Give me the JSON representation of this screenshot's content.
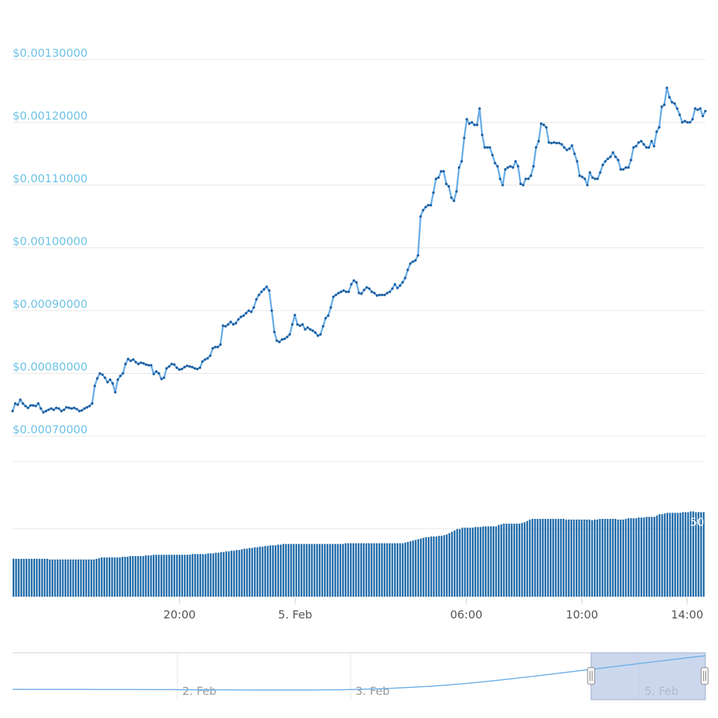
{
  "chart_data": [
    {
      "type": "line",
      "y_tick_labels": [
        "$0.00130000",
        "$0.00120000",
        "$0.00110000",
        "$0.00100000",
        "$0.00090000",
        "$0.00080000",
        "$0.00070000"
      ],
      "ylim": [
        0.0007,
        0.0013
      ],
      "grid": true,
      "line_color": "#6aaee8",
      "marker_color": "#1f5fa0",
      "x_tick_labels": [
        "20:00",
        "5. Feb",
        "06:00",
        "10:00",
        "14:00"
      ],
      "series": [
        {
          "values": [
            0.00074,
            0.000752,
            0.00075,
            0.000758,
            0.000752,
            0.000748,
            0.000745,
            0.000749,
            0.000749,
            0.000748,
            0.000752,
            0.000744,
            0.000738,
            0.00074,
            0.000742,
            0.000744,
            0.000742,
            0.000745,
            0.000744,
            0.00074,
            0.000742,
            0.000746,
            0.000745,
            0.000744,
            0.000745,
            0.000743,
            0.00074,
            0.000741,
            0.000744,
            0.000746,
            0.000748,
            0.000752,
            0.00078,
            0.000792,
            0.0008,
            0.000798,
            0.000793,
            0.000786,
            0.00079,
            0.000784,
            0.00077,
            0.00079,
            0.000796,
            0.0008,
            0.000815,
            0.000823,
            0.00082,
            0.000822,
            0.000818,
            0.000815,
            0.000817,
            0.000816,
            0.000814,
            0.000813,
            0.000813,
            0.000799,
            0.000803,
            0.0008,
            0.000791,
            0.000793,
            0.000808,
            0.000811,
            0.000815,
            0.000814,
            0.000809,
            0.000806,
            0.000807,
            0.00081,
            0.000812,
            0.000811,
            0.00081,
            0.000808,
            0.000807,
            0.000809,
            0.000819,
            0.000822,
            0.000824,
            0.000828,
            0.00084,
            0.000842,
            0.000842,
            0.000846,
            0.000876,
            0.000875,
            0.000878,
            0.000882,
            0.000878,
            0.00088,
            0.000886,
            0.00089,
            0.000892,
            0.000896,
            0.0009,
            0.000898,
            0.000905,
            0.000918,
            0.000925,
            0.00093,
            0.000934,
            0.000938,
            0.000932,
            0.0009,
            0.000866,
            0.000852,
            0.00085,
            0.000854,
            0.000855,
            0.000858,
            0.000862,
            0.000878,
            0.000893,
            0.000878,
            0.000876,
            0.000878,
            0.00087,
            0.000873,
            0.00087,
            0.000868,
            0.000865,
            0.00086,
            0.000862,
            0.000875,
            0.000888,
            0.000892,
            0.000905,
            0.000922,
            0.000925,
            0.000928,
            0.00093,
            0.000932,
            0.00093,
            0.00093,
            0.000942,
            0.000948,
            0.000945,
            0.000928,
            0.000927,
            0.000933,
            0.000937,
            0.000935,
            0.00093,
            0.000928,
            0.000924,
            0.000925,
            0.000925,
            0.000925,
            0.000928,
            0.00093,
            0.000935,
            0.000942,
            0.000936,
            0.00094,
            0.000945,
            0.000952,
            0.000965,
            0.000975,
            0.000978,
            0.00098,
            0.000988,
            0.00105,
            0.00106,
            0.001065,
            0.001068,
            0.001068,
            0.001088,
            0.00111,
            0.001112,
            0.001122,
            0.001122,
            0.001102,
            0.001098,
            0.00108,
            0.001075,
            0.00109,
            0.001128,
            0.001138,
            0.001175,
            0.001205,
            0.001198,
            0.0012,
            0.001196,
            0.001196,
            0.001222,
            0.00118,
            0.00116,
            0.00116,
            0.00116,
            0.001148,
            0.001135,
            0.00113,
            0.00111,
            0.0011,
            0.001125,
            0.001128,
            0.00113,
            0.001128,
            0.001138,
            0.00113,
            0.001102,
            0.0011,
            0.00111,
            0.00111,
            0.001115,
            0.00113,
            0.00116,
            0.00117,
            0.001198,
            0.001196,
            0.001192,
            0.001168,
            0.001167,
            0.001168,
            0.001167,
            0.001167,
            0.001165,
            0.00116,
            0.001156,
            0.001158,
            0.001163,
            0.00115,
            0.001138,
            0.001115,
            0.001113,
            0.00111,
            0.0011,
            0.00112,
            0.001112,
            0.00111,
            0.00111,
            0.00112,
            0.001132,
            0.001138,
            0.001142,
            0.001145,
            0.001152,
            0.001145,
            0.00114,
            0.001125,
            0.001125,
            0.001128,
            0.001128,
            0.00114,
            0.00116,
            0.001162,
            0.001168,
            0.00117,
            0.001165,
            0.00116,
            0.00116,
            0.00117,
            0.001162,
            0.001185,
            0.001192,
            0.001225,
            0.001228,
            0.001255,
            0.00124,
            0.001232,
            0.00123,
            0.001222,
            0.001212,
            0.0012,
            0.001202,
            0.0012,
            0.0012,
            0.001205,
            0.001222,
            0.00122,
            0.001222,
            0.00121,
            0.001218
          ]
        }
      ]
    },
    {
      "type": "bar",
      "bar_color": "#1f6aa8",
      "partial_label": "50",
      "values": [
        0.28,
        0.28,
        0.28,
        0.28,
        0.28,
        0.28,
        0.28,
        0.28,
        0.28,
        0.28,
        0.28,
        0.28,
        0.28,
        0.28,
        0.275,
        0.275,
        0.275,
        0.275,
        0.275,
        0.275,
        0.275,
        0.275,
        0.275,
        0.275,
        0.275,
        0.275,
        0.275,
        0.275,
        0.275,
        0.275,
        0.275,
        0.275,
        0.28,
        0.285,
        0.29,
        0.29,
        0.29,
        0.29,
        0.29,
        0.29,
        0.29,
        0.29,
        0.295,
        0.295,
        0.295,
        0.3,
        0.3,
        0.3,
        0.3,
        0.3,
        0.3,
        0.305,
        0.305,
        0.305,
        0.31,
        0.31,
        0.31,
        0.31,
        0.31,
        0.31,
        0.31,
        0.31,
        0.31,
        0.31,
        0.31,
        0.31,
        0.31,
        0.31,
        0.31,
        0.315,
        0.315,
        0.315,
        0.315,
        0.315,
        0.315,
        0.32,
        0.32,
        0.32,
        0.325,
        0.325,
        0.33,
        0.33,
        0.335,
        0.335,
        0.34,
        0.34,
        0.345,
        0.345,
        0.35,
        0.355,
        0.355,
        0.36,
        0.36,
        0.365,
        0.365,
        0.37,
        0.37,
        0.375,
        0.375,
        0.38,
        0.38,
        0.38,
        0.385,
        0.385,
        0.39,
        0.39,
        0.39,
        0.39,
        0.39,
        0.39,
        0.39,
        0.39,
        0.39,
        0.39,
        0.39,
        0.39,
        0.39,
        0.39,
        0.39,
        0.39,
        0.39,
        0.39,
        0.39,
        0.39,
        0.39,
        0.39,
        0.39,
        0.39,
        0.395,
        0.395,
        0.395,
        0.395,
        0.395,
        0.395,
        0.395,
        0.395,
        0.395,
        0.395,
        0.395,
        0.395,
        0.395,
        0.395,
        0.395,
        0.395,
        0.395,
        0.395,
        0.395,
        0.395,
        0.395,
        0.395,
        0.395,
        0.4,
        0.405,
        0.41,
        0.415,
        0.42,
        0.425,
        0.43,
        0.435,
        0.44,
        0.44,
        0.445,
        0.445,
        0.445,
        0.45,
        0.45,
        0.455,
        0.46,
        0.47,
        0.48,
        0.49,
        0.5,
        0.5,
        0.51,
        0.51,
        0.51,
        0.51,
        0.51,
        0.515,
        0.515,
        0.515,
        0.52,
        0.52,
        0.52,
        0.52,
        0.52,
        0.52,
        0.53,
        0.535,
        0.54,
        0.54,
        0.54,
        0.54,
        0.54,
        0.54,
        0.54,
        0.545,
        0.55,
        0.56,
        0.57,
        0.575,
        0.575,
        0.575,
        0.575,
        0.575,
        0.575,
        0.575,
        0.575,
        0.575,
        0.575,
        0.575,
        0.575,
        0.575,
        0.57,
        0.57,
        0.57,
        0.57,
        0.57,
        0.57,
        0.57,
        0.57,
        0.57,
        0.57,
        0.565,
        0.57,
        0.57,
        0.575,
        0.575,
        0.575,
        0.575,
        0.575,
        0.575,
        0.575,
        0.57,
        0.57,
        0.57,
        0.575,
        0.58,
        0.58,
        0.58,
        0.58,
        0.585,
        0.585,
        0.585,
        0.59,
        0.59,
        0.59,
        0.59,
        0.6,
        0.61,
        0.61,
        0.615,
        0.62,
        0.62,
        0.62,
        0.62,
        0.62,
        0.62,
        0.625,
        0.625,
        0.625,
        0.63,
        0.63,
        0.625,
        0.625,
        0.625,
        0.625
      ]
    },
    {
      "type": "line",
      "role": "navigator",
      "x_tick_labels": [
        "2. Feb",
        "3. Feb",
        "5. Feb"
      ],
      "line_color": "#6aaee8",
      "selection_color": "#b6c6e6",
      "values": [
        0.12,
        0.119,
        0.119,
        0.118,
        0.118,
        0.117,
        0.117,
        0.116,
        0.115,
        0.114,
        0.112,
        0.11,
        0.108,
        0.106,
        0.104,
        0.103,
        0.103,
        0.104,
        0.107,
        0.112,
        0.12,
        0.132,
        0.148,
        0.17,
        0.196,
        0.226,
        0.262,
        0.302,
        0.346,
        0.394,
        0.444,
        0.496,
        0.548,
        0.6,
        0.652,
        0.704,
        0.756,
        0.808,
        0.86,
        0.912,
        0.96
      ],
      "selection_range": [
        0.835,
        1.0
      ]
    }
  ]
}
